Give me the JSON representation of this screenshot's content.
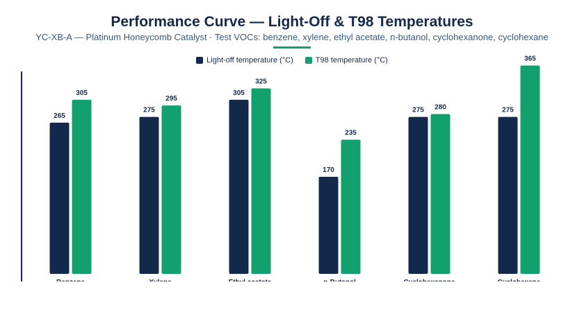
{
  "header": {
    "title": "Performance Curve — Light-Off & T98 Temperatures",
    "subtitle": "YC-XB-A — Platinum Honeycomb Catalyst · Test VOCs: benzene, xylene, ethyl acetate, n-butanol, cyclohexanone, cyclohexane"
  },
  "colors": {
    "series1": "#13294b",
    "series2": "#12a06e",
    "accent_rule": "#12a06e",
    "axis": "#13294b"
  },
  "chart_data": {
    "type": "bar",
    "categories": [
      "Benzene",
      "Xylene",
      "Ethyl acetate",
      "n-Butanol",
      "Cyclohexanone",
      "Cyclohexane"
    ],
    "series": [
      {
        "name": "Light-off temperature (°C)",
        "values": [
          265,
          275,
          305,
          170,
          275,
          275
        ]
      },
      {
        "name": "T98 temperature (°C)",
        "values": [
          305,
          295,
          325,
          235,
          280,
          365
        ]
      }
    ],
    "ylim": [
      0,
      430
    ],
    "grid": false,
    "legend_position": "top-center",
    "data_labels": true
  }
}
